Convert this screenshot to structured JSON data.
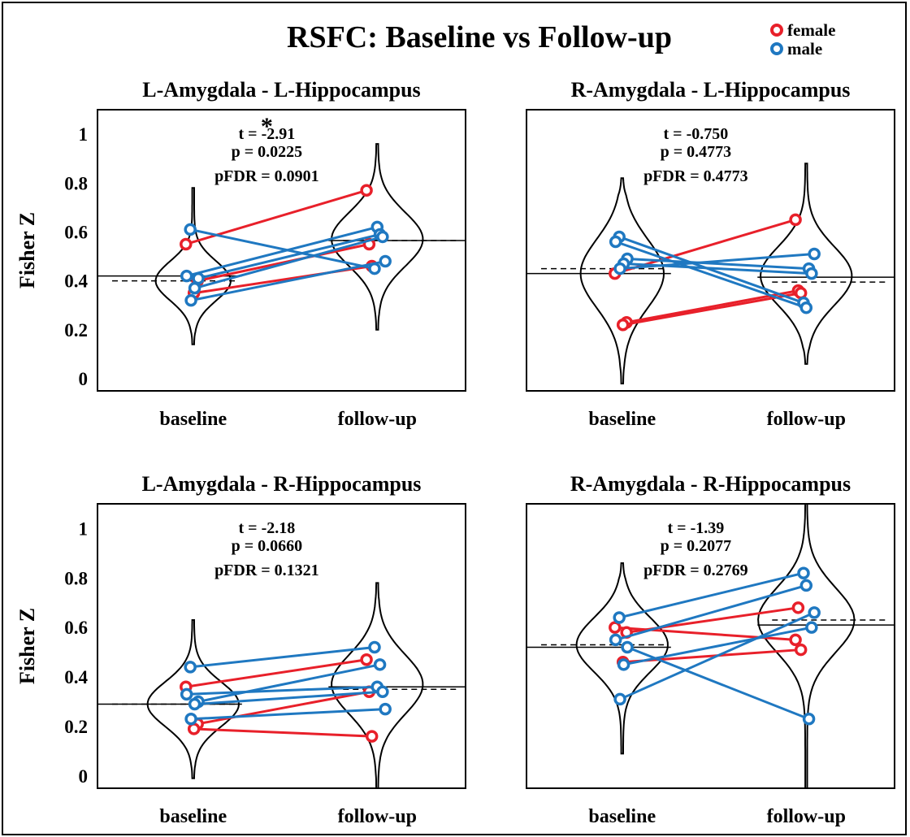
{
  "figure": {
    "title": "RSFC: Baseline vs Follow-up",
    "legend": [
      {
        "label": "female",
        "color": "#e8202a"
      },
      {
        "label": "male",
        "color": "#1f78c1"
      }
    ]
  },
  "chart_data": [
    {
      "type": "violin-paired",
      "title": "L-Amygdala - L-Hippocampus",
      "ylabel": "Fisher Z",
      "categories": [
        "baseline",
        "follow-up"
      ],
      "ylim": [
        -0.05,
        1.1
      ],
      "yticks": [
        "0",
        "0.2",
        "0.4",
        "0.6",
        "0.8",
        "1"
      ],
      "stats": {
        "sig": "*",
        "t": "t = -2.91",
        "p": "p = 0.0225",
        "pfdr": "pFDR = 0.0901"
      },
      "mean": [
        0.42,
        0.565
      ],
      "median": [
        0.4,
        0.565
      ],
      "pairs": [
        {
          "sex": "female",
          "baseline": 0.55,
          "followup": 0.77
        },
        {
          "sex": "female",
          "baseline": 0.4,
          "followup": 0.55
        },
        {
          "sex": "female",
          "baseline": 0.35,
          "followup": 0.46
        },
        {
          "sex": "male",
          "baseline": 0.61,
          "followup": 0.45
        },
        {
          "sex": "male",
          "baseline": 0.42,
          "followup": 0.62
        },
        {
          "sex": "male",
          "baseline": 0.41,
          "followup": 0.59
        },
        {
          "sex": "male",
          "baseline": 0.37,
          "followup": 0.58
        },
        {
          "sex": "male",
          "baseline": 0.32,
          "followup": 0.48
        }
      ]
    },
    {
      "type": "violin-paired",
      "title": "R-Amygdala - L-Hippocampus",
      "ylabel": "",
      "categories": [
        "baseline",
        "follow-up"
      ],
      "ylim": [
        -0.05,
        1.1
      ],
      "yticks": [],
      "stats": {
        "sig": "",
        "t": "t = -0.750",
        "p": "p = 0.4773",
        "pfdr": "pFDR = 0.4773"
      },
      "mean": [
        0.43,
        0.415
      ],
      "median": [
        0.45,
        0.395
      ],
      "pairs": [
        {
          "sex": "female",
          "baseline": 0.43,
          "followup": 0.65
        },
        {
          "sex": "female",
          "baseline": 0.23,
          "followup": 0.36
        },
        {
          "sex": "female",
          "baseline": 0.22,
          "followup": 0.35
        },
        {
          "sex": "male",
          "baseline": 0.58,
          "followup": 0.31
        },
        {
          "sex": "male",
          "baseline": 0.56,
          "followup": 0.29
        },
        {
          "sex": "male",
          "baseline": 0.49,
          "followup": 0.45
        },
        {
          "sex": "male",
          "baseline": 0.47,
          "followup": 0.43
        },
        {
          "sex": "male",
          "baseline": 0.45,
          "followup": 0.51
        }
      ]
    },
    {
      "type": "violin-paired",
      "title": "L-Amygdala - R-Hippocampus",
      "ylabel": "Fisher Z",
      "categories": [
        "baseline",
        "follow-up"
      ],
      "ylim": [
        -0.05,
        1.1
      ],
      "yticks": [
        "0",
        "0.2",
        "0.4",
        "0.6",
        "0.8",
        "1"
      ],
      "stats": {
        "sig": "",
        "t": "t = -2.18",
        "p": "p = 0.0660",
        "pfdr": "pFDR = 0.1321"
      },
      "mean": [
        0.29,
        0.36
      ],
      "median": [
        0.29,
        0.35
      ],
      "pairs": [
        {
          "sex": "female",
          "baseline": 0.36,
          "followup": 0.47
        },
        {
          "sex": "female",
          "baseline": 0.21,
          "followup": 0.34
        },
        {
          "sex": "female",
          "baseline": 0.19,
          "followup": 0.16
        },
        {
          "sex": "male",
          "baseline": 0.44,
          "followup": 0.52
        },
        {
          "sex": "male",
          "baseline": 0.33,
          "followup": 0.36
        },
        {
          "sex": "male",
          "baseline": 0.3,
          "followup": 0.45
        },
        {
          "sex": "male",
          "baseline": 0.29,
          "followup": 0.34
        },
        {
          "sex": "male",
          "baseline": 0.23,
          "followup": 0.27
        }
      ]
    },
    {
      "type": "violin-paired",
      "title": "R-Amygdala - R-Hippocampus",
      "ylabel": "",
      "categories": [
        "baseline",
        "follow-up"
      ],
      "ylim": [
        -0.05,
        1.1
      ],
      "yticks": [],
      "stats": {
        "sig": "",
        "t": "t = -1.39",
        "p": "p = 0.2077",
        "pfdr": "pFDR = 0.2769"
      },
      "mean": [
        0.52,
        0.61
      ],
      "median": [
        0.53,
        0.63
      ],
      "pairs": [
        {
          "sex": "female",
          "baseline": 0.6,
          "followup": 0.55
        },
        {
          "sex": "female",
          "baseline": 0.58,
          "followup": 0.68
        },
        {
          "sex": "female",
          "baseline": 0.46,
          "followup": 0.51
        },
        {
          "sex": "male",
          "baseline": 0.64,
          "followup": 0.82
        },
        {
          "sex": "male",
          "baseline": 0.55,
          "followup": 0.77
        },
        {
          "sex": "male",
          "baseline": 0.52,
          "followup": 0.23
        },
        {
          "sex": "male",
          "baseline": 0.45,
          "followup": 0.6
        },
        {
          "sex": "male",
          "baseline": 0.31,
          "followup": 0.66
        }
      ]
    }
  ]
}
